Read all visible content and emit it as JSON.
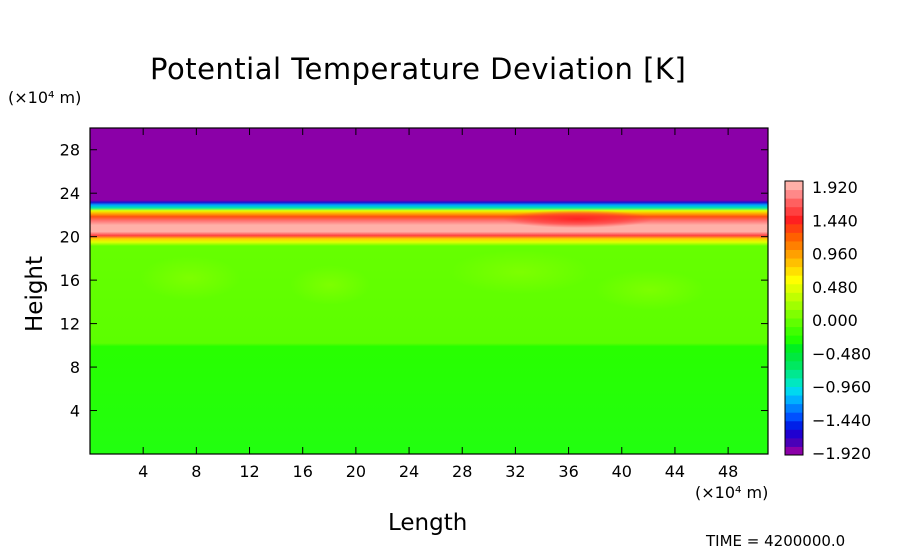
{
  "chart_data": {
    "type": "heatmap",
    "title": "Potential Temperature Deviation [K]",
    "xlabel": "Length",
    "ylabel": "Height",
    "x_unit_label": "(×10⁴ m)",
    "y_unit_label": "(×10⁴ m)",
    "xlim": [
      0,
      51
    ],
    "ylim": [
      0,
      30
    ],
    "x_ticks": [
      "4",
      "8",
      "12",
      "16",
      "20",
      "24",
      "28",
      "32",
      "36",
      "40",
      "44",
      "48"
    ],
    "y_ticks": [
      "4",
      "8",
      "12",
      "16",
      "20",
      "24",
      "28"
    ],
    "colorbar_ticks": [
      "1.920",
      "1.440",
      "0.960",
      "0.480",
      "0.000",
      "−0.480",
      "−0.960",
      "−1.440",
      "−1.920"
    ],
    "colorbar_range": [
      -1.92,
      1.92
    ],
    "colorbar_position": "right",
    "fields": {
      "top_region_value": -1.92,
      "top_region_base_height": 23.5,
      "warm_band_center_height": 20.8,
      "warm_band_peak_value": 1.92,
      "warm_band_peak_x": 36,
      "upper_lower_field_value": 0.2,
      "lower_field_value": 0.1,
      "lower_field_transition_height": 10.5
    },
    "footer_text": "TIME = 4200000.0"
  }
}
